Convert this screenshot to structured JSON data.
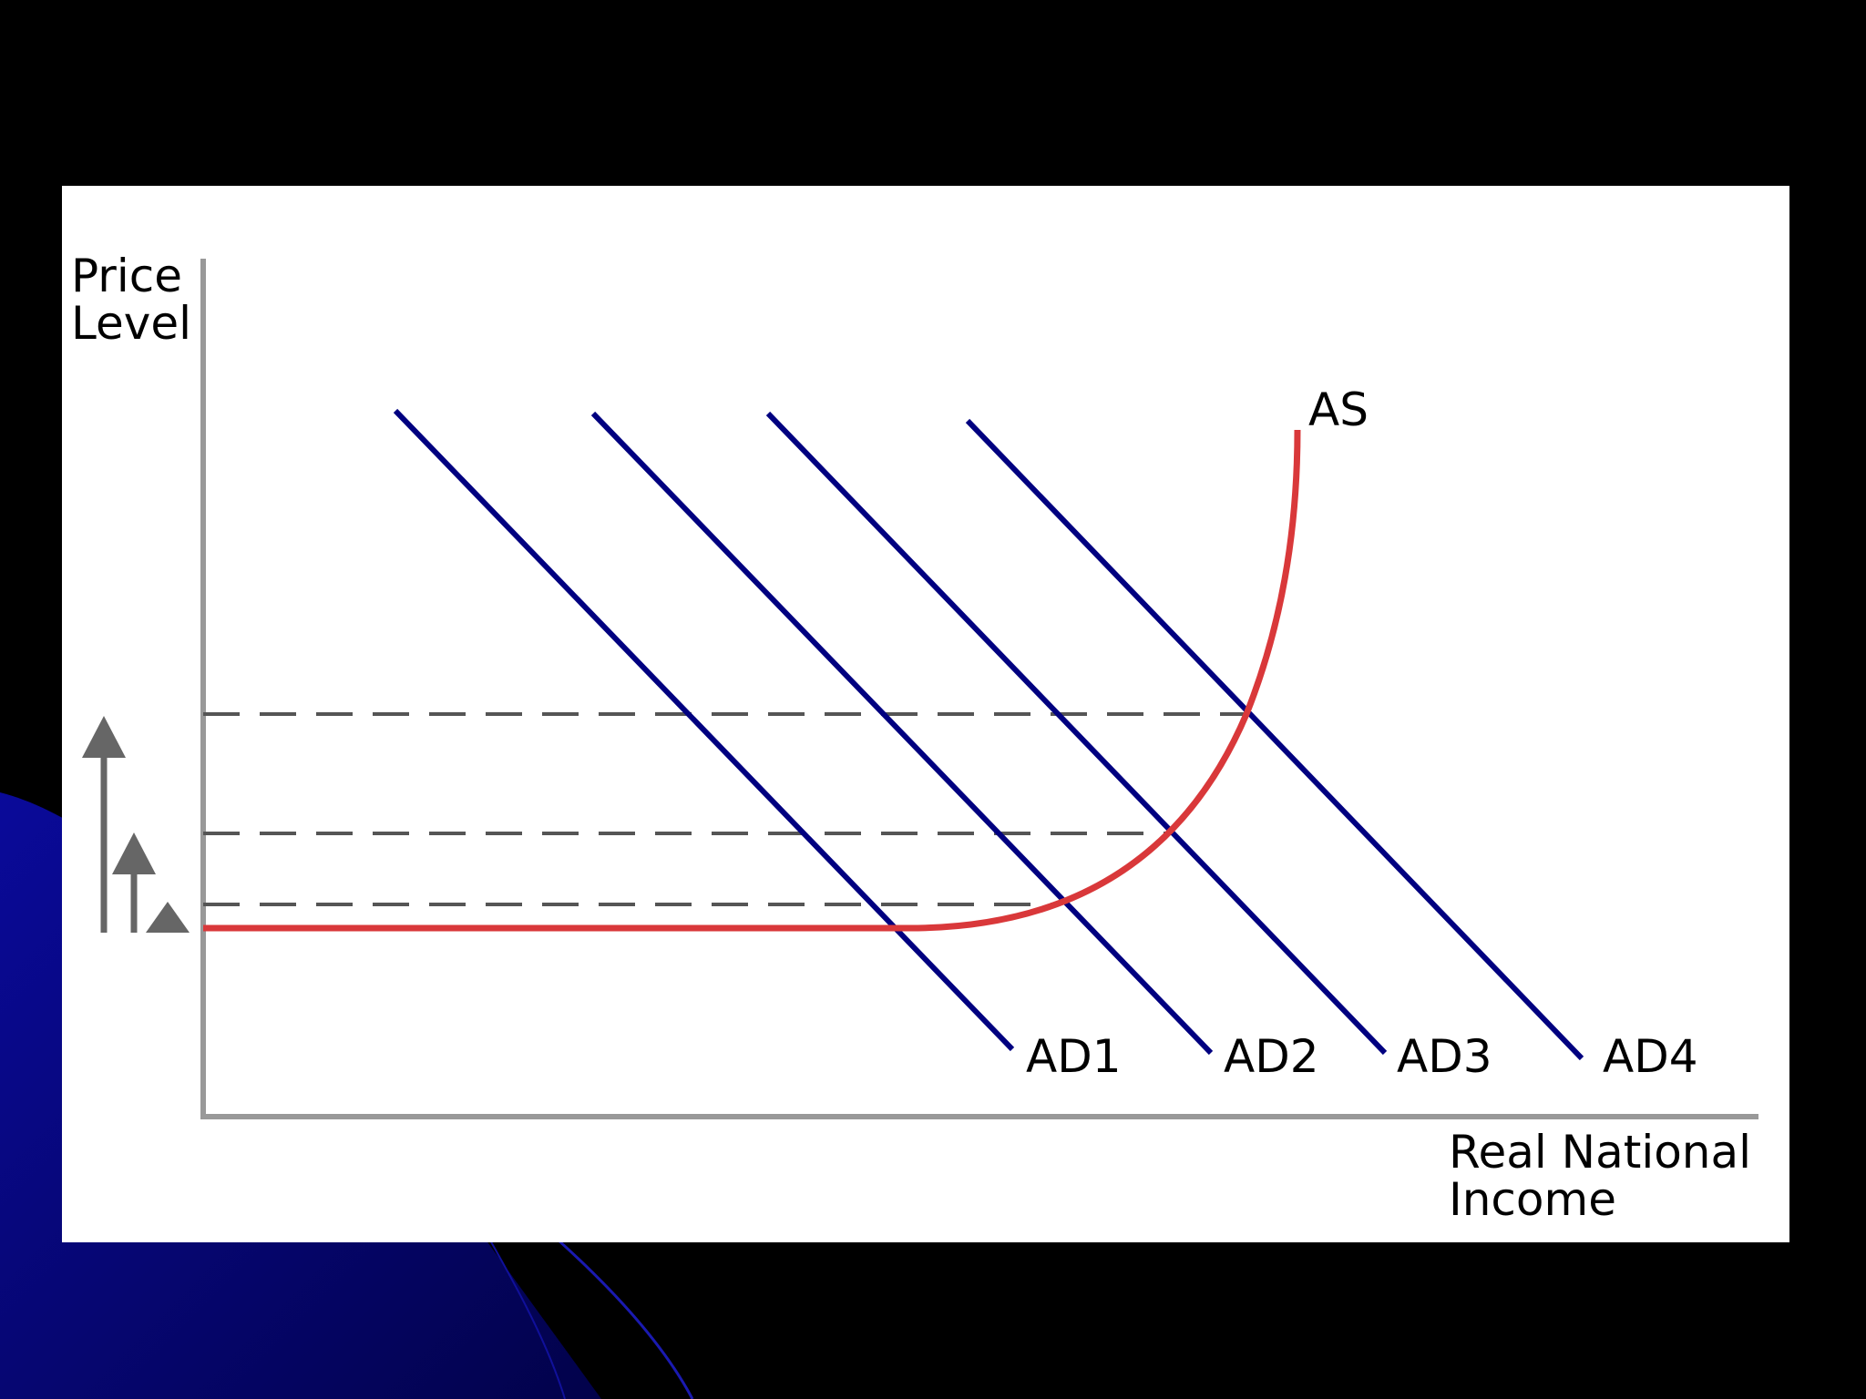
{
  "diagram": {
    "y_axis_label": [
      "Price",
      "Level"
    ],
    "x_axis_label": [
      "Real National",
      "Income"
    ],
    "supply_curve_label": "AS",
    "demand_curves": [
      {
        "label": "AD1"
      },
      {
        "label": "AD2"
      },
      {
        "label": "AD3"
      },
      {
        "label": "AD4"
      }
    ],
    "colors": {
      "background": "#000000",
      "decor": "#050590",
      "panel": "#ffffff",
      "axis": "#999999",
      "demand": "#000080",
      "supply": "#d9383a",
      "guides": "#555555",
      "arrows": "#666666"
    }
  }
}
